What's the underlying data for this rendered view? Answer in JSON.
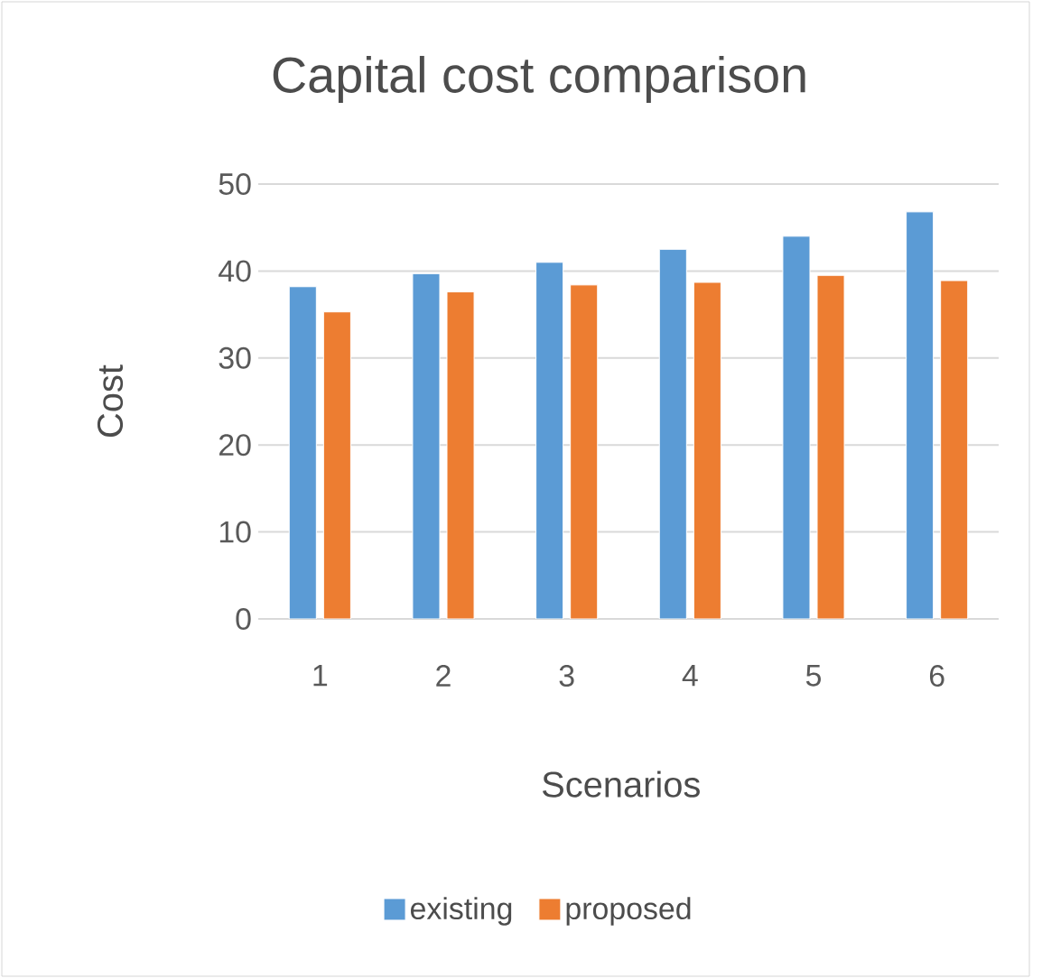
{
  "chart_data": {
    "type": "bar",
    "title": "Capital cost comparison",
    "xlabel": "Scenarios",
    "ylabel": "Cost",
    "categories": [
      "1",
      "2",
      "3",
      "4",
      "5",
      "6"
    ],
    "series": [
      {
        "name": "existing",
        "color": "#5b9bd5",
        "values": [
          38.2,
          39.7,
          41.0,
          42.5,
          44.0,
          46.8
        ]
      },
      {
        "name": "proposed",
        "color": "#ed7d31",
        "values": [
          35.3,
          37.6,
          38.4,
          38.7,
          39.5,
          38.9
        ]
      }
    ],
    "ylim": [
      0,
      50
    ],
    "yticks": [
      0,
      10,
      20,
      30,
      40,
      50
    ],
    "grid": "y",
    "legend": "bottom"
  }
}
